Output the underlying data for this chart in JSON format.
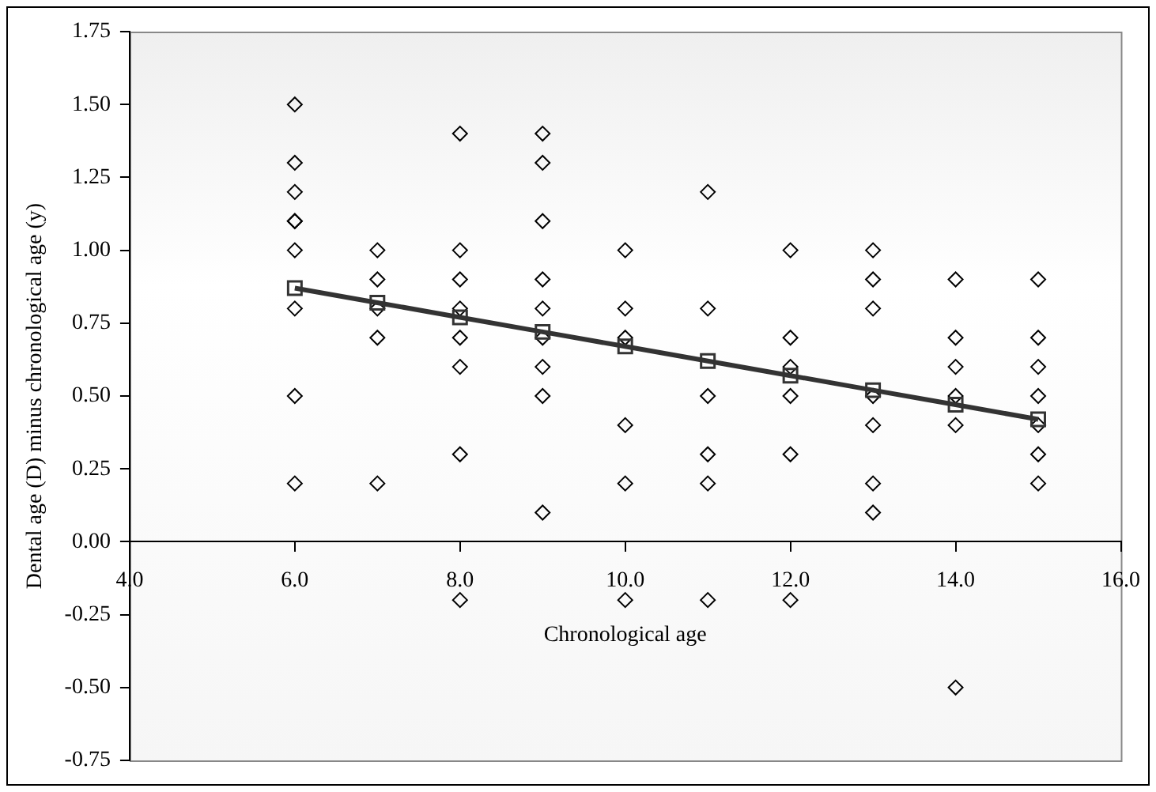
{
  "chart_data": {
    "type": "scatter",
    "xlabel": "Chronological age",
    "ylabel": "Dental age (D) minus chronological age (y)",
    "xlim": [
      4,
      16
    ],
    "xticks": [
      {
        "value": 4,
        "label": "4.0"
      },
      {
        "value": 6,
        "label": "6.0"
      },
      {
        "value": 8,
        "label": "8.0"
      },
      {
        "value": 10,
        "label": "10.0"
      },
      {
        "value": 12,
        "label": "12.0"
      },
      {
        "value": 14,
        "label": "14.0"
      },
      {
        "value": 16,
        "label": "16.0"
      }
    ],
    "ylim": [
      -0.75,
      1.75
    ],
    "yticks": [
      {
        "value": -0.75,
        "label": "-0.75"
      },
      {
        "value": -0.5,
        "label": "-0.50"
      },
      {
        "value": -0.25,
        "label": "-0.25"
      },
      {
        "value": 0,
        "label": "0.00"
      },
      {
        "value": 0.25,
        "label": "0.25"
      },
      {
        "value": 0.5,
        "label": "0.50"
      },
      {
        "value": 0.75,
        "label": "0.75"
      },
      {
        "value": 1,
        "label": "1.00"
      },
      {
        "value": 1.25,
        "label": "1.25"
      },
      {
        "value": 1.5,
        "label": "1.50"
      },
      {
        "value": 1.75,
        "label": "1.75"
      }
    ],
    "grid": false,
    "legend": false,
    "series": [
      {
        "marker": "diamond",
        "color": "#000000",
        "x": [
          6,
          6,
          6,
          6,
          6,
          6,
          6,
          6,
          6,
          7,
          7,
          7,
          7,
          7,
          8,
          8,
          8,
          8,
          8,
          8,
          8,
          8,
          9,
          9,
          9,
          9,
          9,
          9,
          9,
          9,
          9,
          10,
          10,
          10,
          10,
          10,
          10,
          11,
          11,
          11,
          11,
          11,
          11,
          12,
          12,
          12,
          12,
          12,
          12,
          13,
          13,
          13,
          13,
          13,
          13,
          13,
          14,
          14,
          14,
          14,
          14,
          14,
          15,
          15,
          15,
          15,
          15,
          15,
          15
        ],
        "values": [
          1.5,
          1.3,
          1.2,
          1.1,
          1.1,
          1.0,
          0.8,
          0.5,
          0.2,
          1.0,
          0.9,
          0.8,
          0.7,
          0.2,
          1.4,
          1.0,
          0.9,
          0.8,
          0.7,
          0.6,
          0.3,
          -0.2,
          1.4,
          1.3,
          1.1,
          0.9,
          0.8,
          0.7,
          0.6,
          0.5,
          0.1,
          1.0,
          0.8,
          0.7,
          0.4,
          0.2,
          -0.2,
          1.2,
          0.8,
          0.5,
          0.3,
          0.2,
          -0.2,
          1.0,
          0.7,
          0.6,
          0.5,
          0.3,
          -0.2,
          1.0,
          0.9,
          0.8,
          0.5,
          0.4,
          0.2,
          0.1,
          0.9,
          0.7,
          0.6,
          0.5,
          0.4,
          -0.5,
          0.9,
          0.7,
          0.6,
          0.5,
          0.4,
          0.3,
          0.2
        ]
      },
      {
        "type": "line",
        "marker": "square",
        "line_style": "solid",
        "color": "#333333",
        "x": [
          6,
          7,
          8,
          9,
          10,
          11,
          12,
          13,
          14,
          15
        ],
        "values": [
          0.87,
          0.82,
          0.77,
          0.72,
          0.67,
          0.62,
          0.57,
          0.52,
          0.47,
          0.42
        ]
      }
    ]
  }
}
